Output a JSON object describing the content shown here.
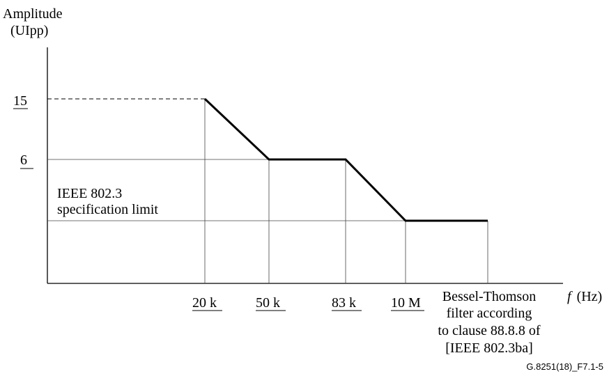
{
  "chart_data": {
    "type": "line",
    "ylabel_line1": "Amplitude",
    "ylabel_line2": "(UIpp)",
    "xlabel_italic": "f",
    "xlabel_unit": "(Hz)",
    "x_ticks": [
      "20 k",
      "50 k",
      "83 k",
      "10 M"
    ],
    "y_ticks": [
      "15",
      "6"
    ],
    "series": [
      {
        "points": [
          {
            "x": "20 k",
            "y": 15
          },
          {
            "x": "50 k",
            "y": 6
          },
          {
            "x": "83 k",
            "y": 6
          },
          {
            "x": "10 M",
            "y": "IEEE 802.3 specification limit"
          },
          {
            "x": "Bessel-Thomson filter",
            "y": "IEEE 802.3 specification limit"
          }
        ]
      }
    ],
    "annotations": {
      "limit_label": [
        "IEEE 802.3",
        "specification limit"
      ],
      "filter_label": [
        "Bessel-Thomson",
        "filter according",
        "to clause 88.8.8 of",
        "[IEEE 802.3ba]"
      ]
    },
    "figure_id": "G.8251(18)_F7.1-5"
  }
}
